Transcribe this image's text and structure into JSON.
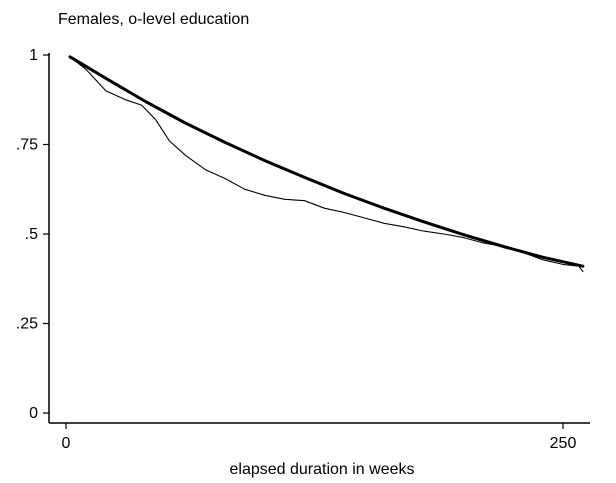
{
  "chart_data": {
    "type": "line",
    "title": "Females, o-level education",
    "xlabel": "elapsed duration in weeks",
    "ylabel": "",
    "xlim": [
      0,
      260
    ],
    "ylim": [
      0,
      1
    ],
    "x_ticks": [
      {
        "value": 0,
        "label": "0"
      },
      {
        "value": 250,
        "label": "250"
      }
    ],
    "y_ticks": [
      {
        "value": 0,
        "label": "0"
      },
      {
        "value": 0.25,
        "label": ".25"
      },
      {
        "value": 0.5,
        "label": ".5"
      },
      {
        "value": 0.75,
        "label": ".75"
      },
      {
        "value": 1,
        "label": "1"
      }
    ],
    "grid": false,
    "legend": "none",
    "series": [
      {
        "style": "thick",
        "color": "#000000",
        "x": [
          2,
          20,
          40,
          60,
          80,
          100,
          120,
          140,
          160,
          180,
          200,
          220,
          240,
          260
        ],
        "y": [
          0.995,
          0.935,
          0.87,
          0.81,
          0.756,
          0.705,
          0.658,
          0.613,
          0.572,
          0.534,
          0.498,
          0.465,
          0.435,
          0.41
        ]
      },
      {
        "style": "thin",
        "color": "#000000",
        "x": [
          2,
          10,
          20,
          30,
          38,
          45,
          52,
          60,
          70,
          80,
          90,
          100,
          110,
          120,
          130,
          140,
          150,
          160,
          170,
          180,
          190,
          200,
          210,
          220,
          230,
          240,
          250,
          258,
          260
        ],
        "y": [
          0.995,
          0.96,
          0.9,
          0.875,
          0.86,
          0.82,
          0.76,
          0.72,
          0.68,
          0.655,
          0.625,
          0.608,
          0.597,
          0.593,
          0.572,
          0.56,
          0.545,
          0.53,
          0.52,
          0.508,
          0.5,
          0.49,
          0.475,
          0.465,
          0.448,
          0.428,
          0.415,
          0.41,
          0.395
        ]
      }
    ]
  }
}
